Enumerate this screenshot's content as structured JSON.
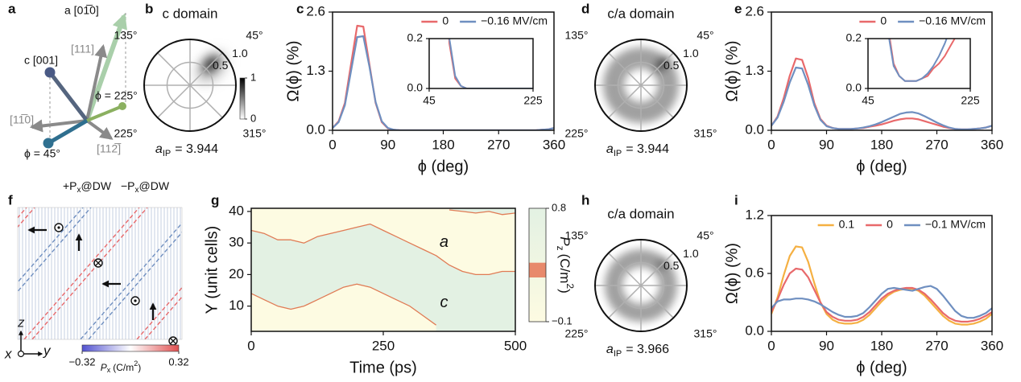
{
  "panel_labels": [
    "a",
    "b",
    "c",
    "d",
    "e",
    "f",
    "g",
    "h",
    "i"
  ],
  "panel_a": {
    "labels": [
      "a [01̅0]",
      "[111]",
      "c [001]",
      "ϕ = 225°",
      "[11̅0]",
      "ϕ = 45°",
      "[112̅]"
    ]
  },
  "polar_plots": [
    {
      "title": "c domain",
      "angle_labels": [
        "135°",
        "45°",
        "225°",
        "315°"
      ],
      "radial_ticks": [
        0.5,
        {
          "value": 1.0,
          "label": "1.0"
        }
      ],
      "lattice": {
        "symbol": "a",
        "subscript": "IP",
        "text": "= 3.944"
      },
      "colorbar_ticks": [
        1,
        0
      ]
    },
    {
      "title": "c/a domain",
      "angle_labels": [
        "135°",
        "45°",
        "225°",
        "315°"
      ],
      "radial_ticks": [
        0.5,
        {
          "value": 1.0,
          "label": "1.0"
        }
      ],
      "lattice": {
        "symbol": "a",
        "subscript": "IP",
        "text": "= 3.944"
      }
    },
    {
      "title": "c/a domain",
      "angle_labels": [
        "135°",
        "45°",
        "225°",
        "315°"
      ],
      "radial_ticks": [
        0.5,
        {
          "value": 1.0,
          "label": "1.0"
        }
      ],
      "lattice": {
        "symbol": "a",
        "subscript": "IP",
        "text": "= 3.966"
      }
    }
  ],
  "panel_f": {
    "labels": [
      {
        "prefix": "+P",
        "sub": "x",
        "suffix": "@DW",
        "color": "#e8696b"
      },
      {
        "prefix": "−P",
        "sub": "x",
        "suffix": "@DW",
        "color": "#6f8fc0"
      }
    ],
    "colorbar": {
      "ticks": [
        {
          "value": -0.32,
          "label": "−0.32"
        },
        0.32
      ],
      "symbol": "P",
      "sub": "x",
      "unit": "(C/m",
      "sup": "2",
      "close": ")"
    },
    "axes": [
      "z",
      "x",
      "y"
    ]
  },
  "chart_data": [
    {
      "type": "line",
      "xlabel": "ϕ (deg)",
      "ylabel": "Ω(ϕ) (%)",
      "x": [
        0,
        10,
        20,
        30,
        40,
        50,
        60,
        70,
        80,
        90,
        100,
        110,
        120,
        130,
        140,
        150,
        160,
        170,
        180,
        190,
        200,
        210,
        220,
        230,
        240,
        250,
        260,
        270,
        280,
        290,
        300,
        310,
        320,
        330,
        340,
        350,
        360
      ],
      "xlim": [
        0,
        360
      ],
      "xticks": [
        0,
        90,
        180,
        270,
        360
      ],
      "ylim": [
        0,
        2.6
      ],
      "yticks": [
        {
          "value": 0,
          "label": "0.0"
        },
        1.3,
        2.6
      ],
      "legend": "upper right",
      "series": [
        {
          "name": "0",
          "color": "#e8696b",
          "values": [
            0.05,
            0.2,
            0.6,
            1.45,
            2.3,
            2.28,
            1.45,
            0.6,
            0.18,
            0.04,
            0.01,
            0,
            0,
            0,
            0,
            0,
            0,
            0,
            0,
            0,
            0,
            0,
            0,
            0,
            0,
            0,
            0,
            0,
            0,
            0,
            0,
            0,
            0,
            0,
            0.01,
            0.02,
            0.05
          ]
        },
        {
          "name": "−0.16 MV/cm",
          "color": "#6f8fc0",
          "values": [
            0.05,
            0.18,
            0.55,
            1.3,
            2.05,
            2.07,
            1.4,
            0.62,
            0.2,
            0.05,
            0.01,
            0,
            0,
            0,
            0,
            0,
            0,
            0,
            0,
            0,
            0,
            0,
            0,
            0,
            0,
            0,
            0,
            0,
            0,
            0,
            0,
            0,
            0,
            0,
            0.01,
            0.02,
            0.05
          ]
        }
      ],
      "inset": {
        "xlim": [
          45,
          225
        ],
        "xticks": [
          45,
          225
        ],
        "ylim": [
          0,
          0.2
        ],
        "yticks": [
          {
            "value": 0,
            "label": "0.0"
          },
          0.2
        ]
      }
    },
    {
      "type": "line",
      "xlabel": "ϕ (deg)",
      "ylabel": "Ω(ϕ) (%)",
      "x": [
        0,
        10,
        20,
        30,
        40,
        50,
        60,
        70,
        80,
        90,
        100,
        110,
        120,
        130,
        140,
        150,
        160,
        170,
        180,
        190,
        200,
        210,
        220,
        230,
        240,
        250,
        260,
        270,
        280,
        290,
        300,
        310,
        320,
        330,
        340,
        350,
        360
      ],
      "xlim": [
        0,
        360
      ],
      "xticks": [
        0,
        90,
        180,
        270,
        360
      ],
      "ylim": [
        0,
        2.6
      ],
      "yticks": [
        {
          "value": 0,
          "label": "0.0"
        },
        1.3,
        2.6
      ],
      "legend": "upper right",
      "series": [
        {
          "name": "0",
          "color": "#e8696b",
          "values": [
            0.1,
            0.3,
            0.7,
            1.2,
            1.58,
            1.55,
            1.15,
            0.6,
            0.25,
            0.1,
            0.05,
            0.03,
            0.03,
            0.03,
            0.04,
            0.05,
            0.08,
            0.1,
            0.13,
            0.17,
            0.21,
            0.24,
            0.26,
            0.26,
            0.24,
            0.2,
            0.16,
            0.12,
            0.08,
            0.05,
            0.03,
            0.02,
            0.02,
            0.03,
            0.04,
            0.06,
            0.1
          ]
        },
        {
          "name": "−0.16 MV/cm",
          "color": "#6f8fc0",
          "values": [
            0.1,
            0.28,
            0.62,
            1.05,
            1.38,
            1.36,
            1.0,
            0.55,
            0.23,
            0.09,
            0.05,
            0.03,
            0.03,
            0.03,
            0.04,
            0.06,
            0.09,
            0.13,
            0.18,
            0.24,
            0.3,
            0.36,
            0.39,
            0.4,
            0.37,
            0.31,
            0.24,
            0.17,
            0.11,
            0.06,
            0.03,
            0.02,
            0.02,
            0.03,
            0.04,
            0.06,
            0.1
          ]
        }
      ],
      "inset": {
        "xlim": [
          45,
          225
        ],
        "xticks": [
          45,
          225
        ],
        "ylim": [
          0,
          0.2
        ],
        "yticks": [
          {
            "value": 0,
            "label": "0.0"
          },
          0.2
        ]
      }
    },
    {
      "type": "line",
      "xlabel": "Time (ps)",
      "ylabel": "Y (unit cells)",
      "x": [
        0,
        25,
        50,
        75,
        100,
        125,
        150,
        175,
        200,
        225,
        250,
        275,
        300,
        325,
        350,
        375,
        400,
        425,
        450,
        475,
        500
      ],
      "xlim": [
        0,
        500
      ],
      "xticks": [
        0,
        250,
        500
      ],
      "ylim": [
        2,
        41
      ],
      "yticks": [
        10,
        20,
        30,
        40
      ],
      "domain_colors": [
        "#fdfbe2",
        "#e3f1e3"
      ],
      "annotations": [
        "a",
        "c"
      ],
      "series": [
        {
          "color": "#e07b55",
          "values": [
            34,
            33,
            31,
            31,
            30,
            32,
            33,
            34,
            35,
            36,
            34,
            32,
            30,
            28,
            26,
            23,
            21,
            20,
            20,
            21,
            21
          ]
        },
        {
          "color": "#e07b55",
          "values": [
            14,
            12,
            10,
            9,
            10,
            12,
            14,
            16,
            17,
            16,
            14,
            12,
            10,
            7,
            4,
            null,
            null,
            null,
            null,
            null,
            null
          ]
        },
        {
          "color": "#e07b55",
          "values": [
            null,
            null,
            null,
            null,
            null,
            null,
            null,
            null,
            null,
            null,
            null,
            null,
            null,
            null,
            null,
            40.5,
            40,
            39.5,
            40,
            39,
            39.5
          ]
        }
      ],
      "colorbar": {
        "clim": [
          -0.1,
          0.8
        ],
        "ticks": [
          0.8,
          {
            "value": -0.1,
            "label": "−0.1"
          }
        ],
        "marker_color": "#e8896b",
        "symbol": "P",
        "sub": "z",
        "unit": "(C/m",
        "sup": "2",
        "close": ")"
      }
    },
    {
      "type": "line",
      "xlabel": "ϕ (deg)",
      "ylabel": "Ω(ϕ) (%)",
      "x": [
        0,
        10,
        20,
        30,
        40,
        50,
        60,
        70,
        80,
        90,
        100,
        110,
        120,
        130,
        140,
        150,
        160,
        170,
        180,
        190,
        200,
        210,
        220,
        230,
        240,
        250,
        260,
        270,
        280,
        290,
        300,
        310,
        320,
        330,
        340,
        350,
        360
      ],
      "xlim": [
        0,
        360
      ],
      "xticks": [
        0,
        90,
        180,
        270,
        360
      ],
      "ylim": [
        0,
        1.2
      ],
      "yticks": [
        {
          "value": 0,
          "label": "0.0"
        },
        0.6,
        1.2
      ],
      "legend": "upper right",
      "series": [
        {
          "name": "0.1",
          "color": "#f5b042",
          "values": [
            0.18,
            0.35,
            0.58,
            0.78,
            0.88,
            0.87,
            0.72,
            0.5,
            0.3,
            0.18,
            0.12,
            0.09,
            0.08,
            0.08,
            0.09,
            0.12,
            0.17,
            0.24,
            0.31,
            0.37,
            0.41,
            0.43,
            0.44,
            0.44,
            0.42,
            0.37,
            0.3,
            0.23,
            0.16,
            0.11,
            0.08,
            0.07,
            0.07,
            0.08,
            0.1,
            0.13,
            0.18
          ]
        },
        {
          "name": "0",
          "color": "#e8696b",
          "values": [
            0.2,
            0.33,
            0.48,
            0.6,
            0.65,
            0.64,
            0.56,
            0.43,
            0.3,
            0.2,
            0.15,
            0.12,
            0.11,
            0.11,
            0.12,
            0.15,
            0.2,
            0.27,
            0.34,
            0.39,
            0.42,
            0.44,
            0.45,
            0.45,
            0.43,
            0.39,
            0.33,
            0.26,
            0.19,
            0.14,
            0.11,
            0.1,
            0.1,
            0.11,
            0.13,
            0.16,
            0.2
          ]
        },
        {
          "name": "−0.1 MV/cm",
          "color": "#6f8fc0",
          "values": [
            0.24,
            0.31,
            0.33,
            0.33,
            0.34,
            0.34,
            0.33,
            0.31,
            0.28,
            0.24,
            0.2,
            0.17,
            0.15,
            0.15,
            0.16,
            0.19,
            0.25,
            0.32,
            0.39,
            0.44,
            0.45,
            0.44,
            0.43,
            0.42,
            0.44,
            0.46,
            0.47,
            0.44,
            0.37,
            0.29,
            0.21,
            0.16,
            0.14,
            0.14,
            0.16,
            0.19,
            0.24
          ]
        }
      ]
    }
  ]
}
